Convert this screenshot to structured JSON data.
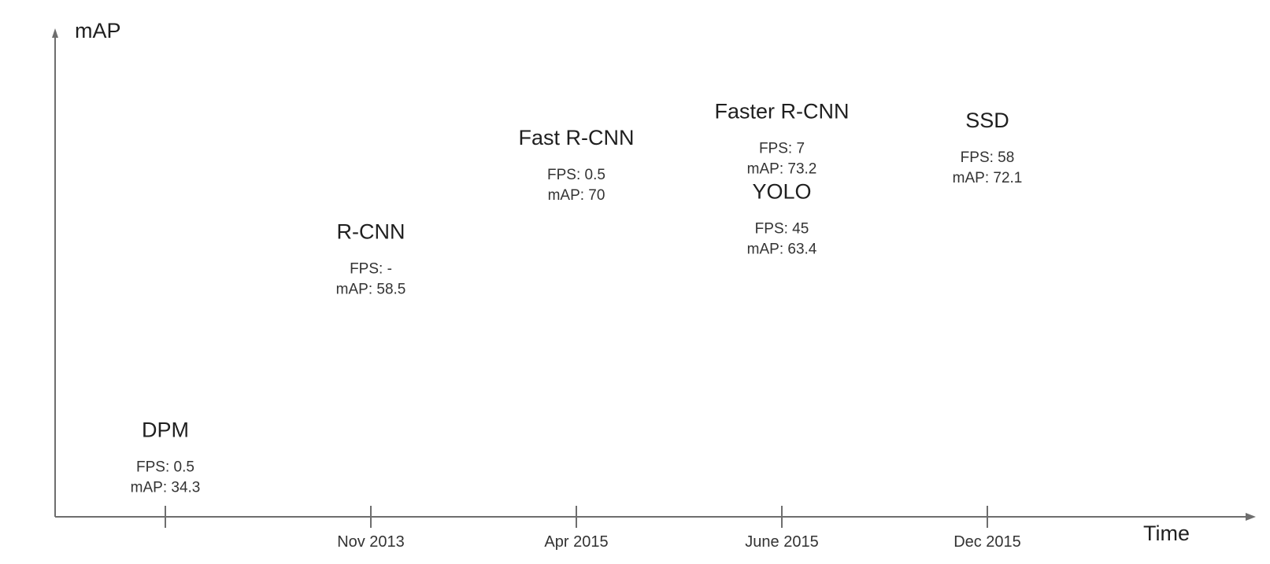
{
  "chart_data": {
    "type": "scatter",
    "title": "",
    "xlabel": "Time",
    "ylabel": "mAP",
    "grid": false,
    "x_categories": [
      "",
      "Nov 2013",
      "Apr 2015",
      "June 2015",
      "Dec 2015"
    ],
    "ylim": [
      30,
      80
    ],
    "points": [
      {
        "name": "DPM",
        "x_index": 0,
        "fps_text": "FPS: 0.5",
        "map_text": "mAP: 34.3",
        "fps": 0.5,
        "map": 34.3
      },
      {
        "name": "R-CNN",
        "x_index": 1,
        "fps_text": "FPS: -",
        "map_text": "mAP: 58.5",
        "fps": null,
        "map": 58.5
      },
      {
        "name": "Fast R-CNN",
        "x_index": 2,
        "fps_text": "FPS: 0.5",
        "map_text": "mAP: 70",
        "fps": 0.5,
        "map": 70
      },
      {
        "name": "Faster R-CNN",
        "x_index": 3,
        "fps_text": "FPS: 7",
        "map_text": "mAP: 73.2",
        "fps": 7,
        "map": 73.2
      },
      {
        "name": "YOLO",
        "x_index": 3,
        "fps_text": "FPS: 45",
        "map_text": "mAP: 63.4",
        "fps": 45,
        "map": 63.4
      },
      {
        "name": "SSD",
        "x_index": 4,
        "fps_text": "FPS: 58",
        "map_text": "mAP: 72.1",
        "fps": 58,
        "map": 72.1
      }
    ],
    "colors": {
      "axis": "#6e6e6e",
      "text": "#1f1f1f"
    }
  }
}
